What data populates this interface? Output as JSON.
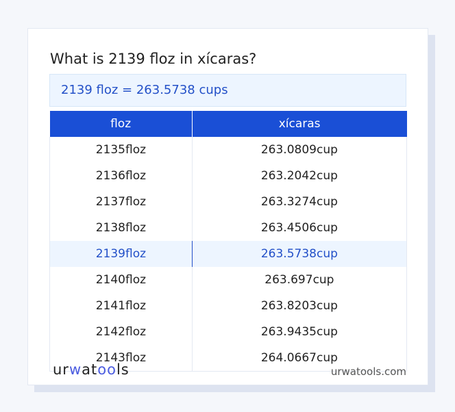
{
  "title": "What is 2139 floz in xícaras?",
  "result": "2139 floz = 263.5738 cups",
  "table": {
    "headers": [
      "floz",
      "xícaras"
    ],
    "rows": [
      [
        "2135floz",
        "263.0809cup"
      ],
      [
        "2136floz",
        "263.2042cup"
      ],
      [
        "2137floz",
        "263.3274cup"
      ],
      [
        "2138floz",
        "263.4506cup"
      ],
      [
        "2139floz",
        "263.5738cup"
      ],
      [
        "2140floz",
        "263.697cup"
      ],
      [
        "2141floz",
        "263.8203cup"
      ],
      [
        "2142floz",
        "263.9435cup"
      ],
      [
        "2143floz",
        "264.0667cup"
      ]
    ],
    "highlighted_row": 4
  },
  "footer": {
    "logo": "urwatools",
    "site": "urwatools.com"
  },
  "colors": {
    "accent": "#1a4fd6",
    "highlight_bg": "#edf5ff",
    "highlight_text": "#2350c8"
  }
}
